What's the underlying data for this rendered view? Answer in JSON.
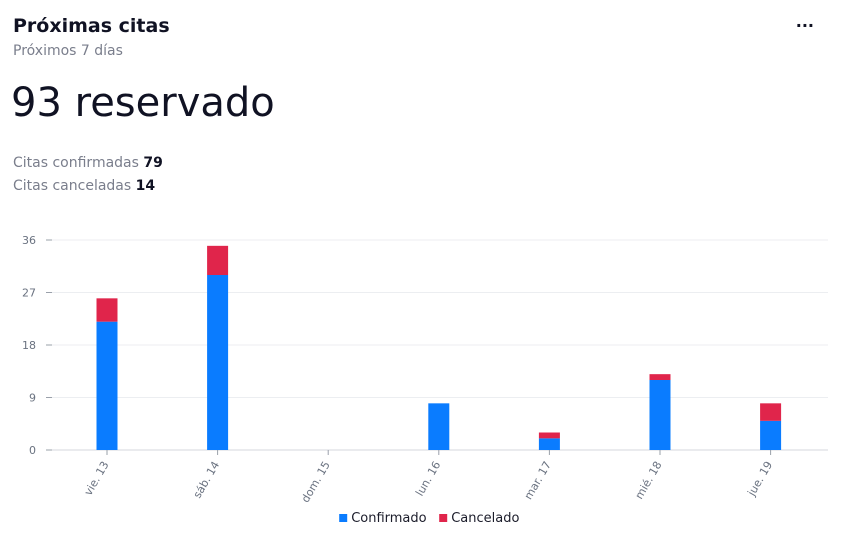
{
  "header": {
    "title": "Próximas citas",
    "subtitle": "Próximos 7 días",
    "more_label": "···"
  },
  "summary": {
    "total_value": "93",
    "total_label": "reservado",
    "confirmed_label": "Citas confirmadas",
    "confirmed_value": "79",
    "cancelled_label": "Citas canceladas",
    "cancelled_value": "14"
  },
  "chart_data": {
    "type": "bar",
    "stacked": true,
    "categories": [
      "vie. 13",
      "sáb. 14",
      "dom. 15",
      "lun. 16",
      "mar. 17",
      "mié. 18",
      "jue. 19"
    ],
    "series": [
      {
        "name": "Confirmado",
        "color": "#0a7cff",
        "values": [
          22,
          30,
          0,
          8,
          2,
          12,
          5
        ]
      },
      {
        "name": "Cancelado",
        "color": "#e0254b",
        "values": [
          4,
          5,
          0,
          0,
          1,
          1,
          3
        ]
      }
    ],
    "y_ticks": [
      0,
      9,
      18,
      27,
      36
    ],
    "ylim": [
      0,
      36
    ],
    "grid": true,
    "legend_position": "bottom-center"
  }
}
